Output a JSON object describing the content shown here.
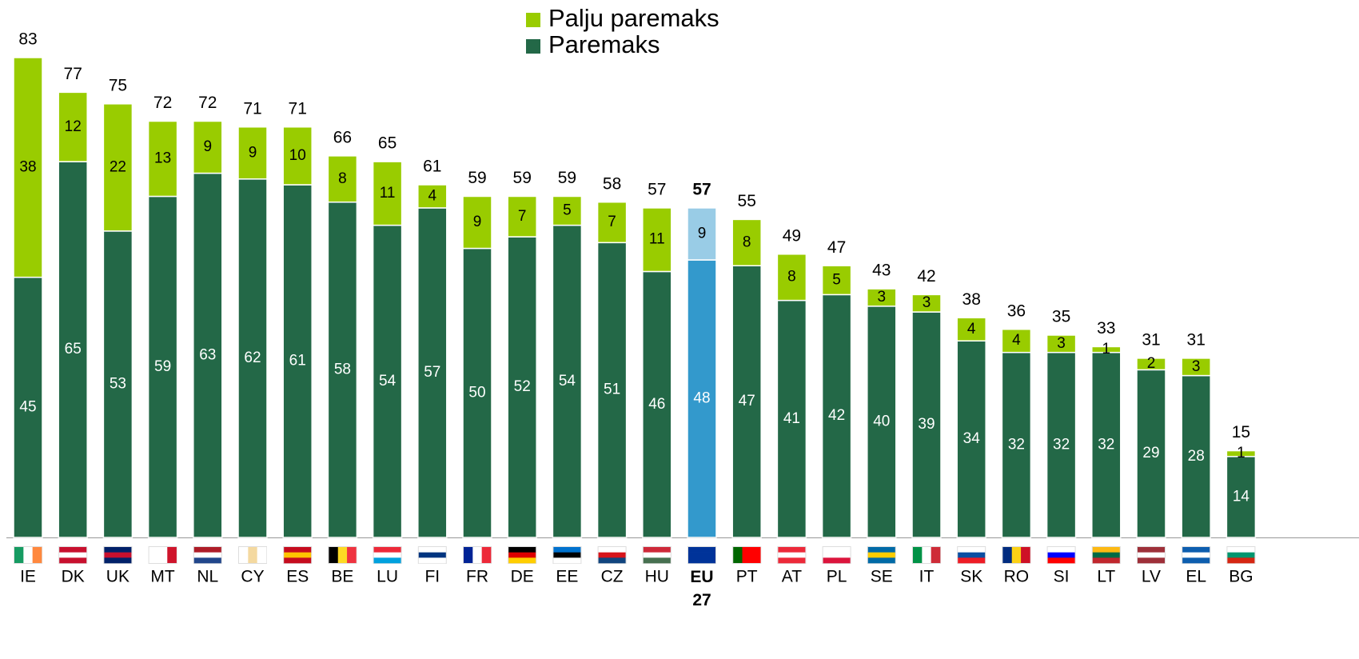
{
  "chart_data": {
    "type": "stacked_bar",
    "categories": [
      "IE",
      "DK",
      "UK",
      "MT",
      "NL",
      "CY",
      "ES",
      "BE",
      "LU",
      "FI",
      "FR",
      "DE",
      "EE",
      "CZ",
      "HU",
      "EU 27",
      "PT",
      "AT",
      "PL",
      "SE",
      "IT",
      "SK",
      "RO",
      "SI",
      "LT",
      "LV",
      "EL",
      "BG"
    ],
    "series": [
      {
        "name": "Paremaks",
        "color": "#236847",
        "values": [
          45,
          65,
          53,
          59,
          63,
          62,
          61,
          58,
          54,
          57,
          50,
          52,
          54,
          51,
          46,
          48,
          47,
          41,
          42,
          40,
          39,
          34,
          32,
          32,
          32,
          29,
          28,
          14
        ]
      },
      {
        "name": "Palju paremaks",
        "color": "#99cc00",
        "values": [
          38,
          12,
          22,
          13,
          9,
          9,
          10,
          8,
          11,
          4,
          9,
          7,
          5,
          7,
          11,
          9,
          8,
          8,
          5,
          3,
          3,
          4,
          4,
          3,
          1,
          2,
          3,
          1
        ]
      }
    ],
    "totals": [
      83,
      77,
      75,
      72,
      72,
      71,
      71,
      66,
      65,
      61,
      59,
      59,
      59,
      58,
      57,
      57,
      55,
      49,
      47,
      43,
      42,
      38,
      36,
      35,
      33,
      31,
      31,
      15
    ],
    "highlight": {
      "category": "EU 27",
      "colors": [
        "#3399cc",
        "#99cce6"
      ]
    }
  }
}
